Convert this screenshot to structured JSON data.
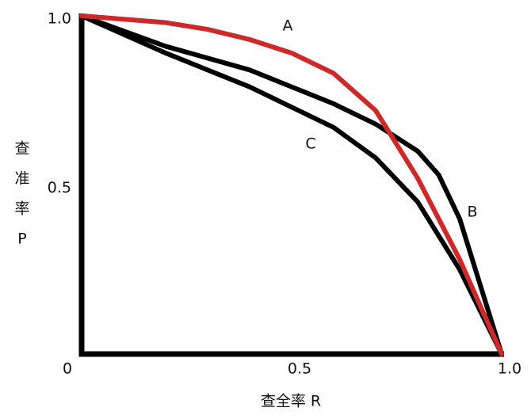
{
  "chart_data": {
    "type": "line",
    "x_label": "查全率 R",
    "y_label": [
      "查",
      "准",
      "率",
      "P"
    ],
    "xlim": [
      0,
      1
    ],
    "ylim": [
      0,
      1
    ],
    "xticks": [
      0,
      0.5,
      {
        "value": 1,
        "label": "1.0"
      }
    ],
    "yticks": [
      0.5,
      {
        "value": 1,
        "label": "1.0"
      }
    ],
    "series": [
      {
        "name": "A",
        "color": "#cc2a2a",
        "x": [
          0,
          0.1,
          0.2,
          0.3,
          0.4,
          0.5,
          0.6,
          0.7,
          0.8,
          0.9,
          1
        ],
        "values": [
          1,
          0.99,
          0.98,
          0.96,
          0.93,
          0.89,
          0.83,
          0.72,
          0.52,
          0.28,
          0
        ]
      },
      {
        "name": "B",
        "color": "#000000",
        "x": [
          0,
          0.2,
          0.4,
          0.6,
          0.7,
          0.8,
          0.85,
          0.9,
          0.95,
          1
        ],
        "values": [
          1,
          0.91,
          0.84,
          0.74,
          0.68,
          0.6,
          0.53,
          0.4,
          0.2,
          0
        ]
      },
      {
        "name": "C",
        "color": "#000000",
        "x": [
          0,
          0.2,
          0.4,
          0.6,
          0.7,
          0.8,
          0.9,
          1
        ],
        "values": [
          1,
          0.89,
          0.79,
          0.67,
          0.58,
          0.45,
          0.25,
          0
        ]
      }
    ]
  }
}
